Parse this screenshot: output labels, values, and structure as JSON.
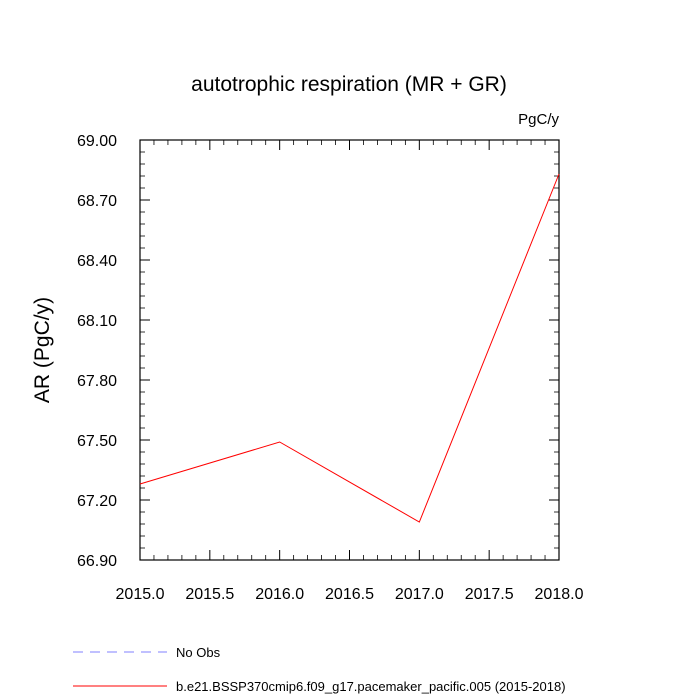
{
  "chart_data": {
    "type": "line",
    "title": "autotrophic respiration (MR + GR)",
    "units_label": "PgC/y",
    "ylabel": "AR  (PgC/y)",
    "xlabel": "",
    "xlim": [
      2015.0,
      2018.0
    ],
    "ylim": [
      66.9,
      69.0
    ],
    "x_ticks": [
      "2015.0",
      "2015.5",
      "2016.0",
      "2016.5",
      "2017.0",
      "2017.5",
      "2018.0"
    ],
    "y_ticks": [
      "66.90",
      "67.20",
      "67.50",
      "67.80",
      "68.10",
      "68.40",
      "68.70",
      "69.00"
    ],
    "grid": false,
    "legend_position": "bottom",
    "series": [
      {
        "name": "b.e21.BSSP370cmip6.f09_g17.pacemaker_pacific.005 (2015-2018)",
        "color": "#ff0000",
        "style": "solid",
        "x": [
          2015,
          2016,
          2017,
          2018
        ],
        "y": [
          67.28,
          67.49,
          67.09,
          68.83
        ]
      }
    ],
    "legend": [
      {
        "label": "No Obs",
        "color": "#8080ff",
        "style": "dashed"
      },
      {
        "label": "b.e21.BSSP370cmip6.f09_g17.pacemaker_pacific.005 (2015-2018)",
        "color": "#ff0000",
        "style": "solid"
      }
    ]
  }
}
